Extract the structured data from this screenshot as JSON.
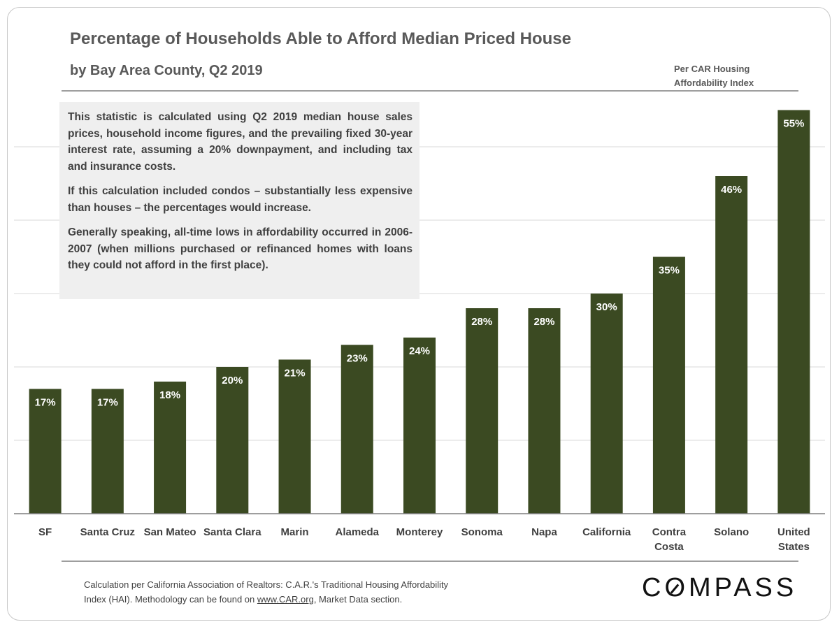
{
  "title": "Percentage of Households Able to Afford Median Priced House",
  "subtitle": "by Bay Area County, Q2 2019",
  "source_line1": "Per CAR Housing",
  "source_line2": "Affordability Index",
  "note": [
    "This statistic is calculated using Q2 2019 median house sales prices, household income figures, and the prevailing fixed 30-year interest rate, assuming a 20% downpayment, and including tax and insurance costs.",
    "If this calculation included condos – substantially less expensive than houses – the percentages would increase.",
    "Generally speaking, all-time lows in affordability occurred in 2006-2007 (when millions purchased or refinanced homes with loans they could not afford in the first place)."
  ],
  "footer_line1": "Calculation per California Association of Realtors: C.A.R.'s Traditional Housing Affordability",
  "footer_line2_pre": "Index (HAI). Methodology can be found on ",
  "footer_link": "www.CAR.org",
  "footer_line2_post": ", Market Data section.",
  "logo": "COMPASS",
  "colors": {
    "bar": "#3b4a22",
    "grid": "#d9d9d9",
    "text": "#595959"
  },
  "chart_data": {
    "type": "bar",
    "title": "Percentage of Households Able to Afford Median Priced House",
    "subtitle": "by Bay Area County, Q2 2019",
    "categories": [
      "SF",
      "Santa Cruz",
      "San Mateo",
      "Santa Clara",
      "Marin",
      "Alameda",
      "Monterey",
      "Sonoma",
      "Napa",
      "California",
      "Contra Costa",
      "Solano",
      "United States"
    ],
    "category_lines": [
      [
        "SF"
      ],
      [
        "Santa Cruz"
      ],
      [
        "San Mateo"
      ],
      [
        "Santa Clara"
      ],
      [
        "Marin"
      ],
      [
        "Alameda"
      ],
      [
        "Monterey"
      ],
      [
        "Sonoma"
      ],
      [
        "Napa"
      ],
      [
        "California"
      ],
      [
        "Contra",
        "Costa"
      ],
      [
        "Solano"
      ],
      [
        "United",
        "States"
      ]
    ],
    "values": [
      17,
      17,
      18,
      20,
      21,
      23,
      24,
      28,
      28,
      30,
      35,
      46,
      55
    ],
    "data_labels": [
      "17%",
      "17%",
      "18%",
      "20%",
      "21%",
      "23%",
      "24%",
      "28%",
      "28%",
      "30%",
      "35%",
      "46%",
      "55%"
    ],
    "ylim": [
      0,
      60
    ],
    "grid": true,
    "grid_step": 10,
    "y_tick_labels_shown": false
  }
}
